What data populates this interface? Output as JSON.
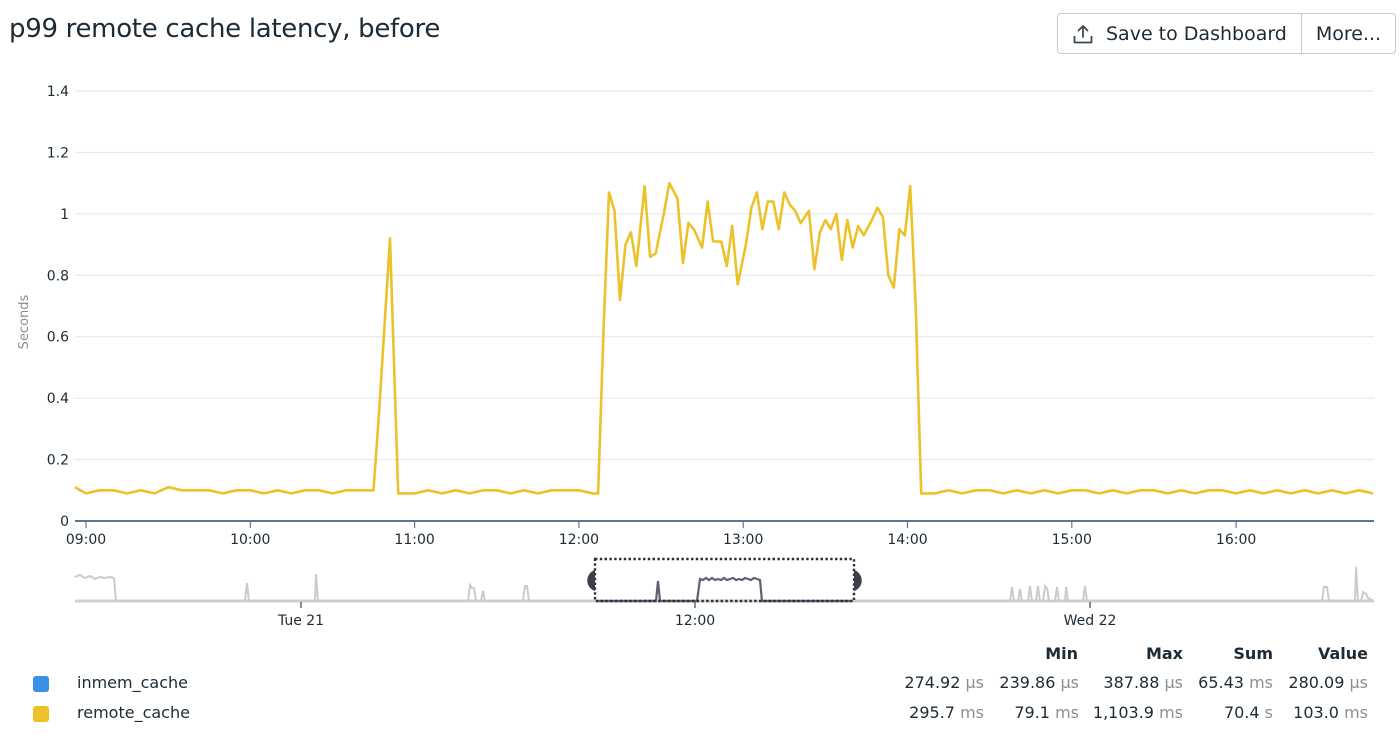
{
  "header": {
    "title": "p99 remote cache latency, before",
    "save_button": "Save to Dashboard",
    "more_button": "More...",
    "save_icon": "upload-icon"
  },
  "chart_data": {
    "type": "line",
    "title": "p99 remote cache latency, before",
    "xlabel": "",
    "ylabel": "Seconds",
    "ylim": [
      0,
      1.4
    ],
    "yticks": [
      "0",
      "0.2",
      "0.4",
      "0.6",
      "0.8",
      "1",
      "1.2",
      "1.4"
    ],
    "xticks": [
      "09:00",
      "10:00",
      "11:00",
      "12:00",
      "13:00",
      "14:00",
      "15:00",
      "16:00"
    ],
    "grid": true,
    "legend_position": "bottom",
    "series": [
      {
        "name": "remote_cache",
        "color": "#ecc22b",
        "points": [
          [
            "08:55",
            0.11
          ],
          [
            "09:00",
            0.09
          ],
          [
            "09:05",
            0.1
          ],
          [
            "09:10",
            0.1
          ],
          [
            "09:15",
            0.09
          ],
          [
            "09:20",
            0.1
          ],
          [
            "09:25",
            0.09
          ],
          [
            "09:30",
            0.11
          ],
          [
            "09:35",
            0.1
          ],
          [
            "09:40",
            0.1
          ],
          [
            "09:45",
            0.1
          ],
          [
            "09:50",
            0.09
          ],
          [
            "09:55",
            0.1
          ],
          [
            "10:00",
            0.1
          ],
          [
            "10:05",
            0.09
          ],
          [
            "10:10",
            0.1
          ],
          [
            "10:15",
            0.09
          ],
          [
            "10:20",
            0.1
          ],
          [
            "10:25",
            0.1
          ],
          [
            "10:30",
            0.09
          ],
          [
            "10:35",
            0.1
          ],
          [
            "10:40",
            0.1
          ],
          [
            "10:45",
            0.1
          ],
          [
            "10:47",
            0.35
          ],
          [
            "10:51",
            0.92
          ],
          [
            "10:54",
            0.09
          ],
          [
            "11:00",
            0.09
          ],
          [
            "11:05",
            0.1
          ],
          [
            "11:10",
            0.09
          ],
          [
            "11:15",
            0.1
          ],
          [
            "11:20",
            0.09
          ],
          [
            "11:25",
            0.1
          ],
          [
            "11:30",
            0.1
          ],
          [
            "11:35",
            0.09
          ],
          [
            "11:40",
            0.1
          ],
          [
            "11:45",
            0.09
          ],
          [
            "11:50",
            0.1
          ],
          [
            "11:55",
            0.1
          ],
          [
            "12:00",
            0.1
          ],
          [
            "12:05",
            0.09
          ],
          [
            "12:07",
            0.09
          ],
          [
            "12:09",
            0.62
          ],
          [
            "12:11",
            1.07
          ],
          [
            "12:13",
            1.01
          ],
          [
            "12:15",
            0.72
          ],
          [
            "12:17",
            0.9
          ],
          [
            "12:19",
            0.94
          ],
          [
            "12:21",
            0.83
          ],
          [
            "12:24",
            1.09
          ],
          [
            "12:26",
            0.86
          ],
          [
            "12:28",
            0.87
          ],
          [
            "12:31",
            1.0
          ],
          [
            "12:33",
            1.1
          ],
          [
            "12:36",
            1.05
          ],
          [
            "12:38",
            0.84
          ],
          [
            "12:40",
            0.97
          ],
          [
            "12:42",
            0.95
          ],
          [
            "12:45",
            0.89
          ],
          [
            "12:47",
            1.04
          ],
          [
            "12:49",
            0.91
          ],
          [
            "12:52",
            0.91
          ],
          [
            "12:54",
            0.83
          ],
          [
            "12:56",
            0.96
          ],
          [
            "12:58",
            0.77
          ],
          [
            "13:01",
            0.9
          ],
          [
            "13:03",
            1.02
          ],
          [
            "13:05",
            1.07
          ],
          [
            "13:07",
            0.95
          ],
          [
            "13:09",
            1.04
          ],
          [
            "13:11",
            1.04
          ],
          [
            "13:13",
            0.95
          ],
          [
            "13:15",
            1.07
          ],
          [
            "13:17",
            1.03
          ],
          [
            "13:19",
            1.01
          ],
          [
            "13:21",
            0.97
          ],
          [
            "13:24",
            1.01
          ],
          [
            "13:26",
            0.82
          ],
          [
            "13:28",
            0.94
          ],
          [
            "13:30",
            0.98
          ],
          [
            "13:32",
            0.95
          ],
          [
            "13:34",
            1.0
          ],
          [
            "13:36",
            0.85
          ],
          [
            "13:38",
            0.98
          ],
          [
            "13:40",
            0.89
          ],
          [
            "13:42",
            0.96
          ],
          [
            "13:44",
            0.93
          ],
          [
            "13:47",
            0.98
          ],
          [
            "13:49",
            1.02
          ],
          [
            "13:51",
            0.99
          ],
          [
            "13:53",
            0.8
          ],
          [
            "13:55",
            0.76
          ],
          [
            "13:57",
            0.95
          ],
          [
            "13:59",
            0.93
          ],
          [
            "14:01",
            1.09
          ],
          [
            "14:03",
            0.7
          ],
          [
            "14:05",
            0.09
          ],
          [
            "14:10",
            0.09
          ],
          [
            "14:15",
            0.1
          ],
          [
            "14:20",
            0.09
          ],
          [
            "14:25",
            0.1
          ],
          [
            "14:30",
            0.1
          ],
          [
            "14:35",
            0.09
          ],
          [
            "14:40",
            0.1
          ],
          [
            "14:45",
            0.09
          ],
          [
            "14:50",
            0.1
          ],
          [
            "14:55",
            0.09
          ],
          [
            "15:00",
            0.1
          ],
          [
            "15:05",
            0.1
          ],
          [
            "15:10",
            0.09
          ],
          [
            "15:15",
            0.1
          ],
          [
            "15:20",
            0.09
          ],
          [
            "15:25",
            0.1
          ],
          [
            "15:30",
            0.1
          ],
          [
            "15:35",
            0.09
          ],
          [
            "15:40",
            0.1
          ],
          [
            "15:45",
            0.09
          ],
          [
            "15:50",
            0.1
          ],
          [
            "15:55",
            0.1
          ],
          [
            "16:00",
            0.09
          ],
          [
            "16:05",
            0.1
          ],
          [
            "16:10",
            0.09
          ],
          [
            "16:15",
            0.1
          ],
          [
            "16:20",
            0.09
          ],
          [
            "16:25",
            0.1
          ],
          [
            "16:30",
            0.09
          ],
          [
            "16:35",
            0.1
          ],
          [
            "16:40",
            0.09
          ],
          [
            "16:45",
            0.1
          ],
          [
            "16:50",
            0.09
          ]
        ]
      },
      {
        "name": "inmem_cache",
        "color": "#3a8fe6",
        "points": []
      }
    ]
  },
  "navigator": {
    "labels": [
      "Tue 21",
      "12:00",
      "Wed 22"
    ]
  },
  "legend": {
    "columns": [
      "Min",
      "Max",
      "Sum",
      "Value"
    ],
    "rows": [
      {
        "name": "inmem_cache",
        "color": "#3a8fe6",
        "avg": "274.92",
        "avg_unit": "µs",
        "min": "239.86",
        "min_unit": "µs",
        "max": "387.88",
        "max_unit": "µs",
        "sum": "65.43",
        "sum_unit": "ms",
        "value": "280.09",
        "value_unit": "µs"
      },
      {
        "name": "remote_cache",
        "color": "#ecc22b",
        "avg": "295.7",
        "avg_unit": "ms",
        "min": "79.1",
        "min_unit": "ms",
        "max": "1,103.9",
        "max_unit": "ms",
        "sum": "70.4",
        "sum_unit": "s",
        "value": "103.0",
        "value_unit": "ms"
      }
    ]
  }
}
